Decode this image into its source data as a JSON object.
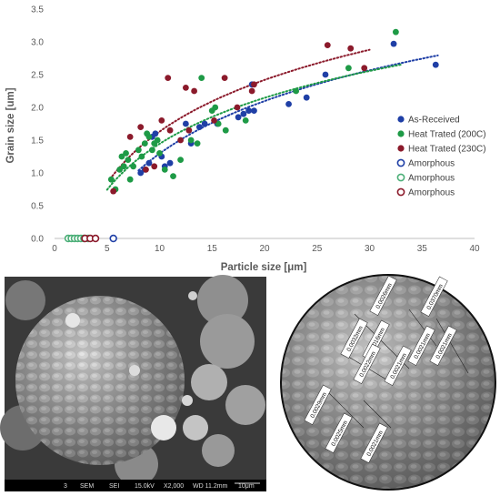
{
  "chart_data": {
    "type": "scatter",
    "xlabel": "Particle size [",
    "xlabel_unit": "μm",
    "xlabel_end": "]",
    "ylabel": "Grain size [um]",
    "xlim": [
      0,
      40
    ],
    "ylim": [
      0,
      3.5
    ],
    "xticks": [
      "0",
      "5",
      "10",
      "15",
      "20",
      "25",
      "30",
      "35",
      "40"
    ],
    "yticks": [
      "0.0",
      "0.5",
      "1.0",
      "1.5",
      "2.0",
      "2.5",
      "3.0",
      "3.5"
    ],
    "grid": false,
    "legend_position": "right",
    "series": [
      {
        "name": "As-Received",
        "color": "#1f3fa6",
        "marker": "filled",
        "points": [
          [
            8.2,
            1.0
          ],
          [
            8.6,
            1.05
          ],
          [
            9.0,
            1.15
          ],
          [
            9.3,
            1.55
          ],
          [
            9.6,
            1.6
          ],
          [
            10.2,
            1.25
          ],
          [
            10.5,
            1.1
          ],
          [
            11.0,
            1.15
          ],
          [
            12.5,
            1.75
          ],
          [
            13.0,
            1.45
          ],
          [
            13.8,
            1.7
          ],
          [
            14.3,
            1.75
          ],
          [
            15.5,
            1.75
          ],
          [
            17.5,
            1.85
          ],
          [
            18.0,
            1.9
          ],
          [
            18.5,
            1.95
          ],
          [
            18.8,
            2.35
          ],
          [
            19.0,
            1.95
          ],
          [
            22.3,
            2.05
          ],
          [
            24.0,
            2.15
          ],
          [
            25.8,
            2.5
          ],
          [
            32.3,
            2.97
          ],
          [
            36.3,
            2.65
          ]
        ]
      },
      {
        "name": "Heat Trated (200C)",
        "color": "#1e9a46",
        "marker": "filled",
        "points": [
          [
            5.4,
            0.9
          ],
          [
            5.8,
            0.75
          ],
          [
            6.2,
            1.05
          ],
          [
            6.4,
            1.25
          ],
          [
            6.6,
            1.1
          ],
          [
            6.8,
            1.3
          ],
          [
            7.0,
            1.2
          ],
          [
            7.2,
            0.9
          ],
          [
            7.5,
            1.1
          ],
          [
            8.0,
            1.35
          ],
          [
            8.3,
            1.25
          ],
          [
            8.6,
            1.45
          ],
          [
            8.8,
            1.6
          ],
          [
            9.0,
            1.55
          ],
          [
            9.3,
            1.35
          ],
          [
            9.5,
            1.45
          ],
          [
            9.8,
            1.5
          ],
          [
            10.0,
            1.3
          ],
          [
            10.5,
            1.05
          ],
          [
            11.3,
            0.95
          ],
          [
            12.0,
            1.2
          ],
          [
            13.0,
            1.5
          ],
          [
            13.6,
            1.45
          ],
          [
            14.0,
            2.45
          ],
          [
            15.0,
            1.95
          ],
          [
            15.3,
            2.0
          ],
          [
            15.6,
            1.75
          ],
          [
            16.3,
            1.65
          ],
          [
            18.2,
            1.8
          ],
          [
            23.0,
            2.25
          ],
          [
            28.0,
            2.6
          ],
          [
            32.5,
            3.15
          ]
        ]
      },
      {
        "name": "Heat Trated (230C)",
        "color": "#8b1a2b",
        "marker": "filled",
        "points": [
          [
            5.6,
            0.72
          ],
          [
            7.2,
            1.55
          ],
          [
            8.2,
            1.7
          ],
          [
            8.7,
            1.05
          ],
          [
            9.5,
            1.1
          ],
          [
            10.2,
            1.8
          ],
          [
            10.8,
            2.45
          ],
          [
            11.0,
            1.65
          ],
          [
            12.0,
            1.5
          ],
          [
            12.5,
            2.3
          ],
          [
            12.8,
            1.65
          ],
          [
            13.3,
            2.25
          ],
          [
            15.2,
            1.8
          ],
          [
            16.2,
            2.45
          ],
          [
            17.4,
            2.0
          ],
          [
            18.8,
            2.25
          ],
          [
            19.0,
            2.35
          ],
          [
            26.0,
            2.95
          ],
          [
            28.2,
            2.9
          ],
          [
            29.5,
            2.6
          ]
        ]
      },
      {
        "name": "Amorphous",
        "color": "#1f3fa6",
        "marker": "open",
        "points": [
          [
            5.6,
            0.0
          ]
        ]
      },
      {
        "name": "Amorphous",
        "color": "#4caf78",
        "marker": "open",
        "points": [
          [
            1.3,
            0.0
          ],
          [
            1.6,
            0.0
          ],
          [
            1.9,
            0.0
          ],
          [
            2.2,
            0.0
          ],
          [
            2.5,
            0.0
          ],
          [
            2.8,
            0.0
          ],
          [
            3.2,
            0.0
          ]
        ]
      },
      {
        "name": "Amorphous",
        "color": "#8b1a2b",
        "marker": "open",
        "points": [
          [
            2.9,
            0.0
          ],
          [
            3.4,
            0.0
          ],
          [
            3.9,
            0.0
          ]
        ]
      }
    ],
    "trendlines": [
      {
        "series": "As-Received",
        "color": "#1f3fa6",
        "style": "dotted",
        "x_range": [
          8,
          36.5
        ]
      },
      {
        "series": "Heat Trated (200C)",
        "color": "#1e9a46",
        "style": "dotted",
        "x_range": [
          5,
          33
        ]
      },
      {
        "series": "Heat Trated (230C)",
        "color": "#8b1a2b",
        "style": "dotted",
        "x_range": [
          5.5,
          30
        ]
      }
    ]
  },
  "sem_left": {
    "info_bar": [
      "3",
      "SEM",
      "SEI",
      "15.0kV",
      "X2,000",
      "WD 11.2mm",
      "10μm"
    ]
  },
  "sem_right": {
    "labels": [
      "0.0026mm",
      "0.0370mm",
      "0.0021mm",
      "0.0032mm",
      "0.0016mm",
      "0.0021mm",
      "0.0022mm",
      "0.0021mm",
      "0.0029mm",
      "0.0025mm",
      "0.0021mm"
    ]
  }
}
